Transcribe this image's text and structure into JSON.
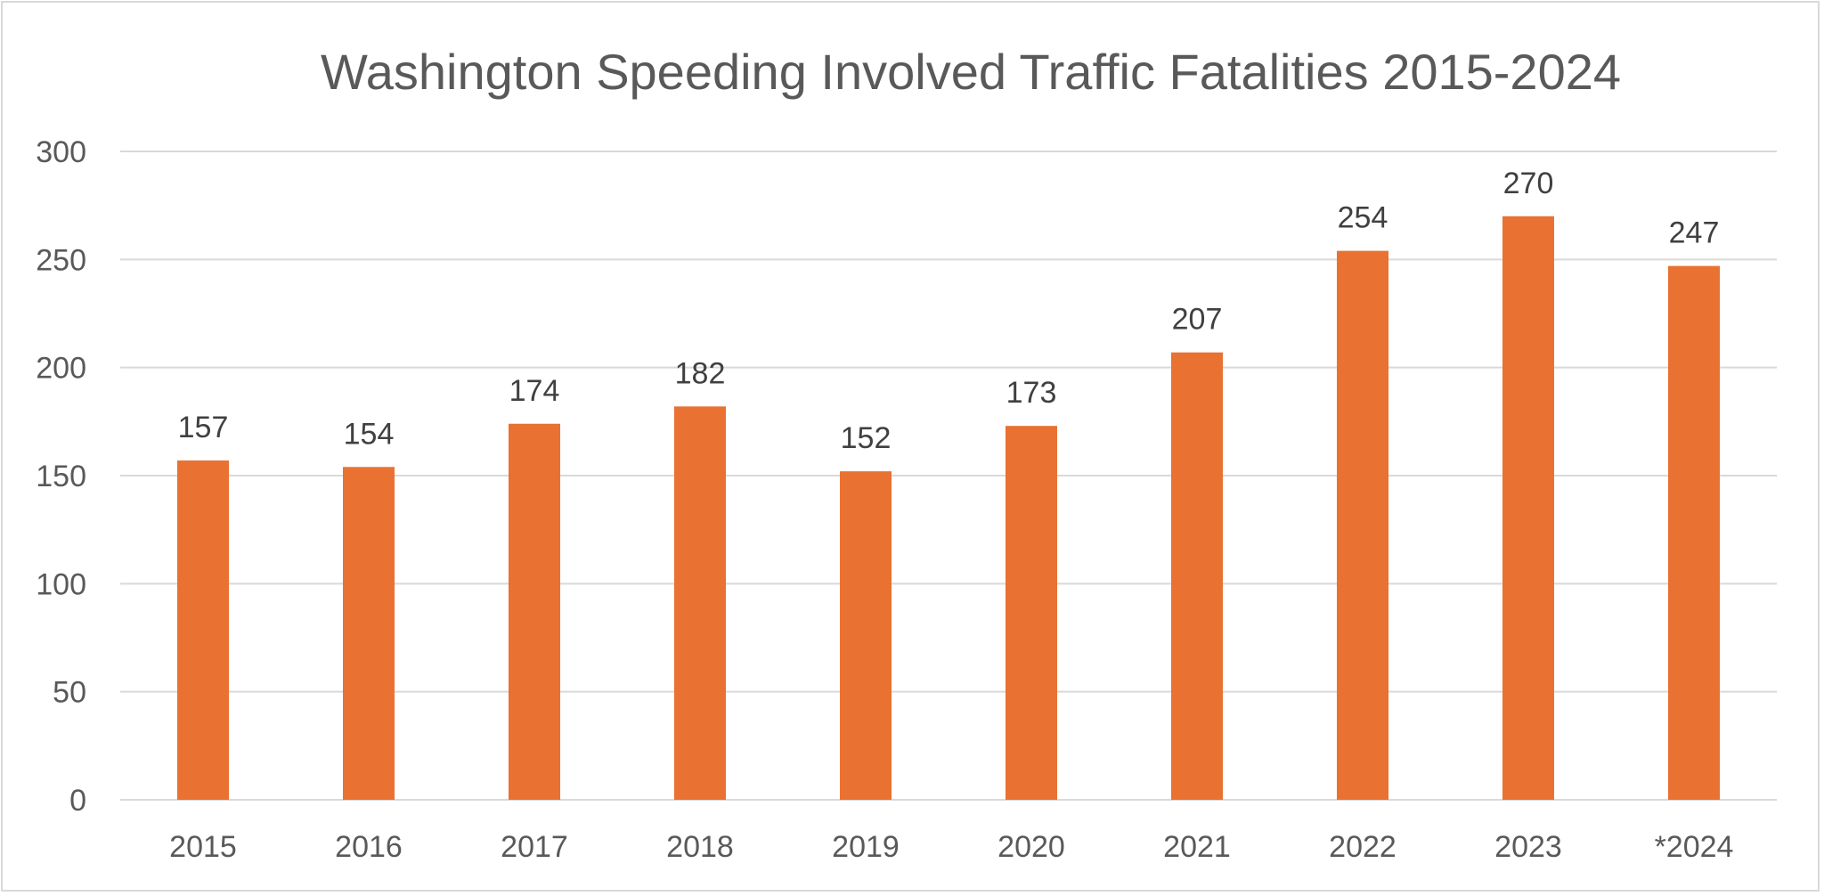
{
  "chart_data": {
    "type": "bar",
    "title": "Washington Speeding Involved Traffic Fatalities 2015-2024",
    "xlabel": "",
    "ylabel": "",
    "categories": [
      "2015",
      "2016",
      "2017",
      "2018",
      "2019",
      "2020",
      "2021",
      "2022",
      "2023",
      "*2024"
    ],
    "values": [
      157,
      154,
      174,
      182,
      152,
      173,
      207,
      254,
      270,
      247
    ],
    "ylim": [
      0,
      300
    ],
    "yticks": [
      0,
      50,
      100,
      150,
      200,
      250,
      300
    ],
    "grid": true,
    "legend": "none",
    "data_labels": true,
    "colors": {
      "bar": "#e97132",
      "gridline": "#d9d9d9",
      "axis_text": "#595959",
      "data_label": "#404040"
    }
  }
}
